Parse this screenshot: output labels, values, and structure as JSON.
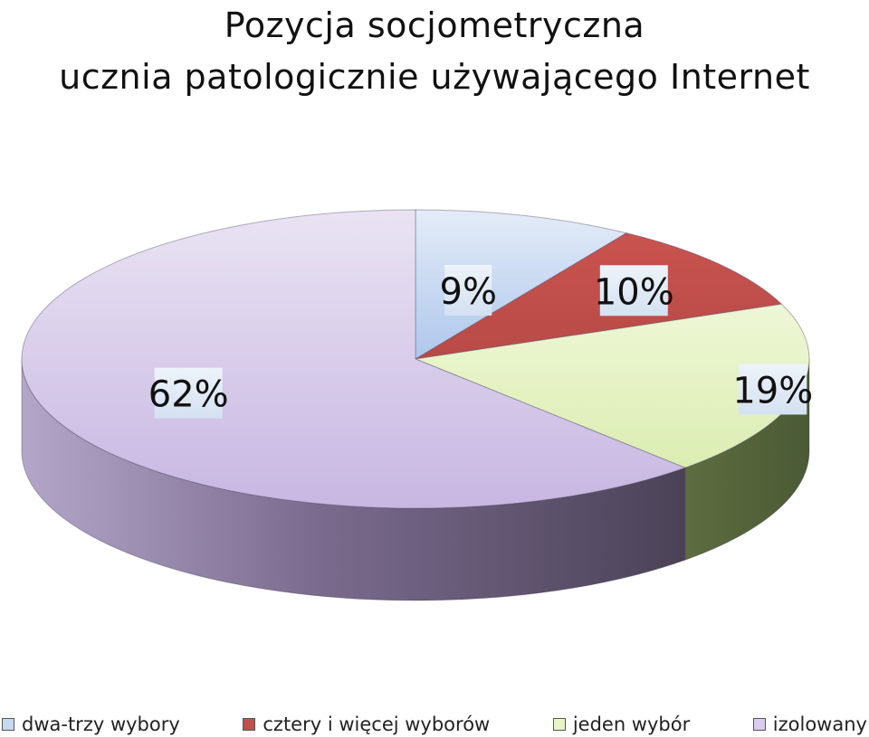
{
  "chart_data": {
    "type": "pie",
    "title_lines": [
      "Pozycja socjometryczna",
      "ucznia patologicznie używającego Internet"
    ],
    "legend_placement": "bottom",
    "slices": [
      {
        "label": "dwa-trzy wybory",
        "value": 9,
        "value_label": "9%",
        "color": "#c6d9f1"
      },
      {
        "label": "cztery i więcej wyborów",
        "value": 10,
        "value_label": "10%",
        "color": "#c0504d"
      },
      {
        "label": "jeden wybór",
        "value": 19,
        "value_label": "19%",
        "color": "#eaf5c8"
      },
      {
        "label": "izolowany",
        "value": 62,
        "value_label": "62%",
        "color": "#d9ccec"
      }
    ]
  }
}
